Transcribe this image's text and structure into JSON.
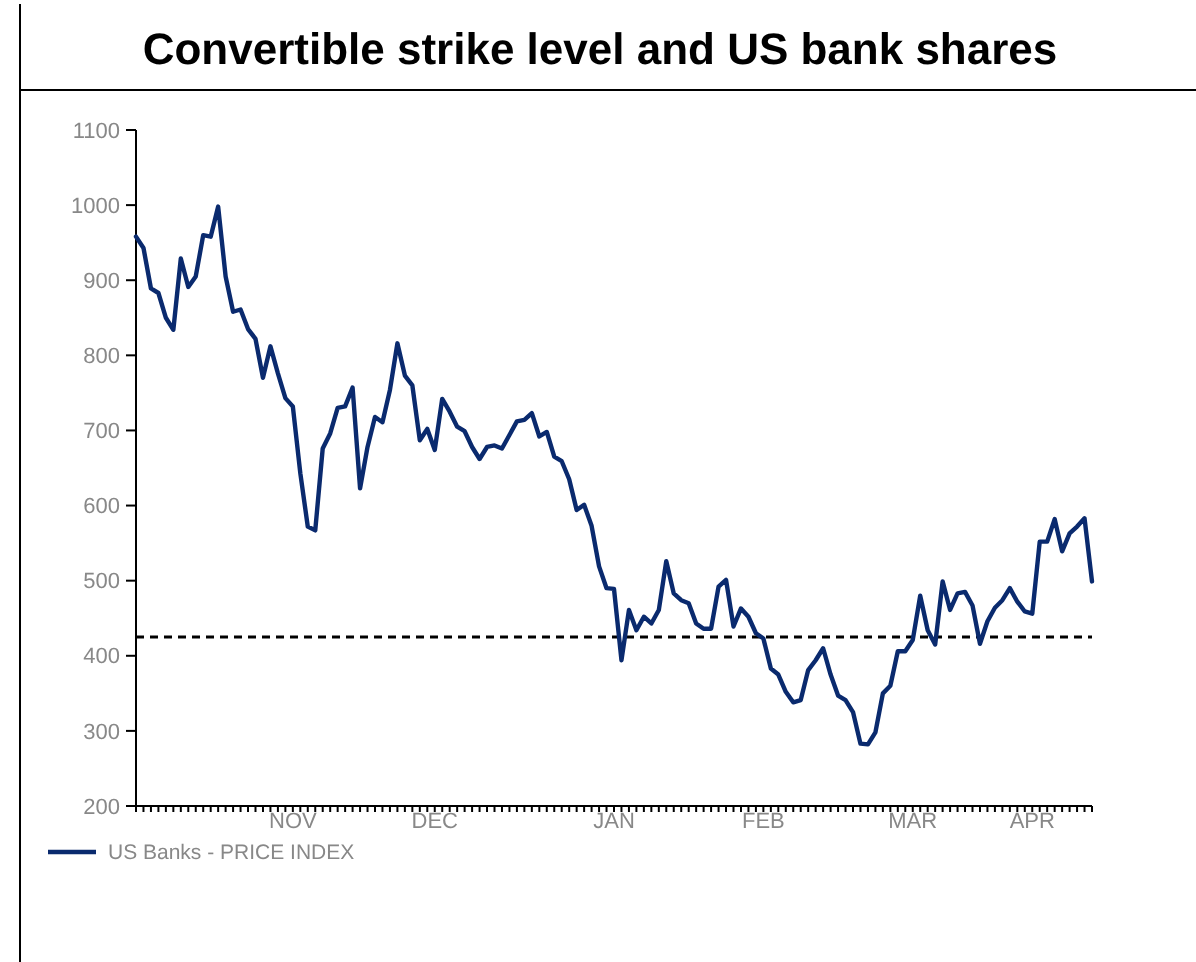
{
  "chart_data": {
    "type": "line",
    "title": "Convertible strike level and US bank shares",
    "categories": [
      null,
      null,
      null,
      null,
      null,
      null,
      null,
      null,
      null,
      null,
      null,
      null,
      null,
      null,
      null,
      null,
      null,
      null,
      null,
      null,
      null,
      "NOV",
      null,
      null,
      null,
      null,
      null,
      null,
      null,
      null,
      null,
      null,
      null,
      null,
      null,
      null,
      null,
      null,
      null,
      null,
      "DEC",
      null,
      null,
      null,
      null,
      null,
      null,
      null,
      null,
      null,
      null,
      null,
      null,
      null,
      null,
      null,
      null,
      null,
      null,
      null,
      null,
      null,
      null,
      null,
      "JAN",
      null,
      null,
      null,
      null,
      null,
      null,
      null,
      null,
      null,
      null,
      null,
      null,
      null,
      null,
      null,
      null,
      null,
      null,
      null,
      "FEB",
      null,
      null,
      null,
      null,
      null,
      null,
      null,
      null,
      null,
      null,
      null,
      null,
      null,
      null,
      null,
      null,
      null,
      null,
      null,
      "MAR",
      null,
      null,
      null,
      null,
      null,
      null,
      null,
      null,
      null,
      null,
      null,
      null,
      null,
      null,
      null,
      "APR",
      null,
      null,
      null,
      null,
      null,
      null,
      null,
      null
    ],
    "ylim": [
      200,
      1100
    ],
    "yticks": [
      200,
      300,
      400,
      500,
      600,
      700,
      800,
      900,
      1000,
      1100
    ],
    "grid": false,
    "legend": "bottom left",
    "marker": "none",
    "line_style": "solid",
    "ref_lines": [
      {
        "axis": "y",
        "value": 425,
        "label": null,
        "color": "#000000",
        "line_style": "dashed"
      }
    ],
    "series": [
      {
        "name": "US Banks - PRICE INDEX",
        "color": "#0a2a6e",
        "values": [
          958,
          943,
          889,
          883,
          850,
          834,
          929,
          891,
          905,
          960,
          958,
          998,
          905,
          858,
          861,
          835,
          822,
          770,
          812,
          776,
          743,
          732,
          643,
          572,
          567,
          676,
          696,
          730,
          732,
          757,
          623,
          678,
          718,
          711,
          754,
          816,
          773,
          760,
          687,
          702,
          674,
          742,
          725,
          705,
          699,
          678,
          662,
          678,
          680,
          676,
          694,
          712,
          714,
          723,
          692,
          698,
          665,
          659,
          635,
          594,
          601,
          573,
          519,
          490,
          489,
          394,
          461,
          434,
          452,
          443,
          461,
          526,
          483,
          474,
          470,
          443,
          436,
          436,
          492,
          501,
          439,
          463,
          452,
          430,
          423,
          383,
          375,
          352,
          338,
          341,
          381,
          394,
          410,
          375,
          347,
          341,
          325,
          283,
          282,
          298,
          350,
          360,
          406,
          406,
          421,
          480,
          434,
          415,
          499,
          461,
          483,
          485,
          467,
          416,
          446,
          464,
          474,
          490,
          472,
          459,
          456,
          552,
          552,
          582,
          539,
          563,
          572,
          583,
          499
        ]
      }
    ]
  }
}
